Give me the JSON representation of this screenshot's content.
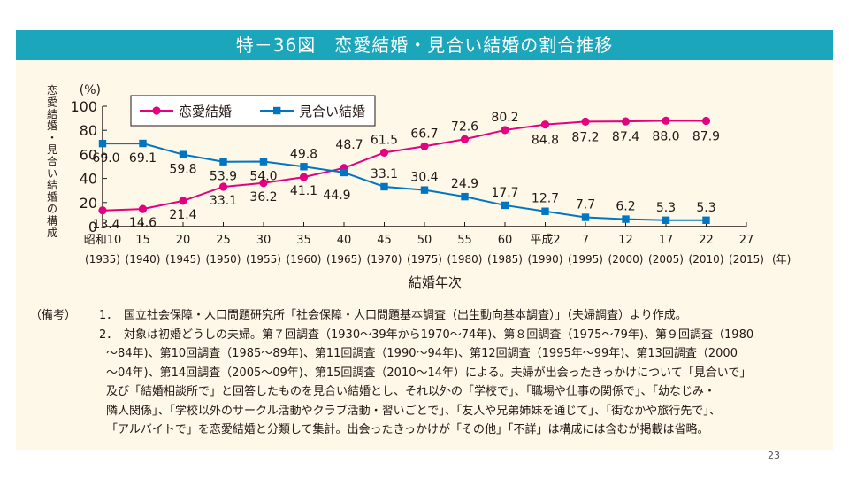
{
  "figure_title": "特－36図　恋愛結婚・見合い結婚の割合推移",
  "page_number": "23",
  "colors": {
    "title_bar": "#1ba6bc",
    "panel": "#fdf8e8",
    "love": "#e4007f",
    "arranged": "#0075c2"
  },
  "chart_data": {
    "type": "line",
    "ylabel": "恋愛結婚・見合い結婚の構成",
    "yunit": "(%)",
    "xlabel": "結婚年次",
    "ylim": [
      0,
      100
    ],
    "yticks": [
      0,
      20,
      40,
      60,
      80,
      100
    ],
    "grid": false,
    "legend_position": "top-left",
    "x_tick_labels": [
      {
        "era": "昭和10",
        "year": "(1935)"
      },
      {
        "era": "15",
        "year": "(1940)"
      },
      {
        "era": "20",
        "year": "(1945)"
      },
      {
        "era": "25",
        "year": "(1950)"
      },
      {
        "era": "30",
        "year": "(1955)"
      },
      {
        "era": "35",
        "year": "(1960)"
      },
      {
        "era": "40",
        "year": "(1965)"
      },
      {
        "era": "45",
        "year": "(1970)"
      },
      {
        "era": "50",
        "year": "(1975)"
      },
      {
        "era": "55",
        "year": "(1980)"
      },
      {
        "era": "60",
        "year": "(1985)"
      },
      {
        "era": "平成2",
        "year": "(1990)"
      },
      {
        "era": "7",
        "year": "(1995)"
      },
      {
        "era": "12",
        "year": "(2000)"
      },
      {
        "era": "17",
        "year": "(2005)"
      },
      {
        "era": "22",
        "year": "(2010)"
      },
      {
        "era": "27",
        "year": "(2015)"
      }
    ],
    "x_end_label": "(年)",
    "series": [
      {
        "name": "恋愛結婚",
        "x": [
          1935,
          1940,
          1945,
          1950,
          1955,
          1960,
          1965,
          1970,
          1975,
          1980,
          1985,
          1990,
          1995,
          2000,
          2005,
          2010,
          2015
        ],
        "values": [
          13.4,
          14.6,
          21.4,
          33.1,
          36.2,
          41.1,
          48.7,
          61.5,
          66.7,
          72.6,
          80.2,
          84.8,
          87.2,
          87.4,
          88.0,
          87.9,
          null
        ],
        "labels": [
          "13.4",
          "14.6",
          "21.4",
          "33.1",
          "36.2",
          "41.1",
          "",
          "61.5",
          "66.7",
          "72.6",
          "80.2",
          "84.8",
          "87.2",
          "87.4",
          "88.0",
          "87.9",
          ""
        ]
      },
      {
        "name": "見合い結婚",
        "x": [
          1935,
          1940,
          1945,
          1950,
          1955,
          1960,
          1965,
          1970,
          1975,
          1980,
          1985,
          1990,
          1995,
          2000,
          2005,
          2010,
          2015
        ],
        "values": [
          69.0,
          69.1,
          59.8,
          53.9,
          54.0,
          49.8,
          44.9,
          33.1,
          30.4,
          24.9,
          17.7,
          12.7,
          7.7,
          6.2,
          5.3,
          5.3,
          null
        ],
        "labels": [
          "69.0",
          "69.1",
          "59.8",
          "53.9",
          "54.0",
          "49.8",
          "",
          "33.1",
          "30.4",
          "24.9",
          "17.7",
          "12.7",
          "7.7",
          "6.2",
          "5.3",
          "5.3",
          ""
        ]
      }
    ],
    "crossing_labels": [
      {
        "text": "48.7",
        "series": "恋愛結婚"
      },
      {
        "text": "44.9",
        "series": "見合い結婚"
      }
    ]
  },
  "notes": {
    "label": "（備考）",
    "items": [
      {
        "num": "1．",
        "lines": [
          "国立社会保障・人口問題研究所「社会保障・人口問題基本調査（出生動向基本調査）」（夫婦調査）より作成。"
        ]
      },
      {
        "num": "2．",
        "lines": [
          "対象は初婚どうしの夫婦。第７回調査（1930～39年から1970～74年)、第８回調査（1975～79年)、第９回調査（1980",
          "～84年)、第10回調査（1985～89年)、第11回調査（1990～94年)、第12回調査（1995年～99年)、第13回調査（2000",
          "～04年)、第14回調査（2005～09年)、第15回調査（2010～14年）による。夫婦が出会ったきっかけについて「見合いで」",
          "及び「結婚相談所で」と回答したものを見合い結婚とし、それ以外の「学校で」、「職場や仕事の関係で」、「幼なじみ・",
          "隣人関係」、「学校以外のサークル活動やクラブ活動・習いごとで」、「友人や兄弟姉妹を通じて」、「街なかや旅行先で」、",
          "「アルバイトで」を恋愛結婚と分類して集計。出会ったきっかけが「その他」「不詳」は構成には含むが掲載は省略。"
        ]
      }
    ]
  }
}
